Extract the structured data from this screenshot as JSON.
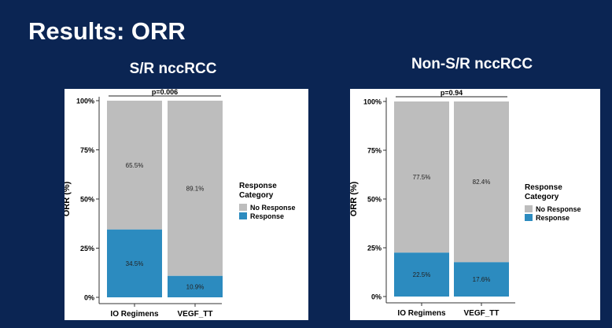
{
  "slide": {
    "title": "Results: ORR"
  },
  "chart_data": [
    {
      "type": "bar",
      "stacked": true,
      "title": "S/R nccRCC",
      "xlabel": "",
      "ylabel": "ORR (%)",
      "ylim": [
        0,
        100
      ],
      "yticks": [
        "0%",
        "25%",
        "50%",
        "75%",
        "100%"
      ],
      "categories": [
        "IO Regimens",
        "VEGF_TT"
      ],
      "series": [
        {
          "name": "Response",
          "color": "#2c8bbf",
          "values": [
            34.5,
            10.9
          ],
          "labels": [
            "34.5%",
            "10.9%"
          ]
        },
        {
          "name": "No  Response",
          "color": "#bdbdbd",
          "values": [
            65.5,
            89.1
          ],
          "labels": [
            "65.5%",
            "89.1%"
          ]
        }
      ],
      "annotation": "p=0.006",
      "legend": {
        "title_line1": "Response",
        "title_line2": "Category",
        "entries": [
          "No  Response",
          "Response"
        ],
        "placement": "right"
      },
      "grid": false
    },
    {
      "type": "bar",
      "stacked": true,
      "title": "Non-S/R nccRCC",
      "xlabel": "",
      "ylabel": "ORR (%)",
      "ylim": [
        0,
        100
      ],
      "yticks": [
        "0%",
        "25%",
        "50%",
        "75%",
        "100%"
      ],
      "categories": [
        "IO Regimens",
        "VEGF_TT"
      ],
      "series": [
        {
          "name": "Response",
          "color": "#2c8bbf",
          "values": [
            22.5,
            17.6
          ],
          "labels": [
            "22.5%",
            "17.6%"
          ]
        },
        {
          "name": "No  Response",
          "color": "#bdbdbd",
          "values": [
            77.5,
            82.4
          ],
          "labels": [
            "77.5%",
            "82.4%"
          ]
        }
      ],
      "annotation": "p=0.94",
      "legend": {
        "title_line1": "Response",
        "title_line2": "Category",
        "entries": [
          "No  Response",
          "Response"
        ],
        "placement": "right"
      },
      "grid": false
    }
  ]
}
